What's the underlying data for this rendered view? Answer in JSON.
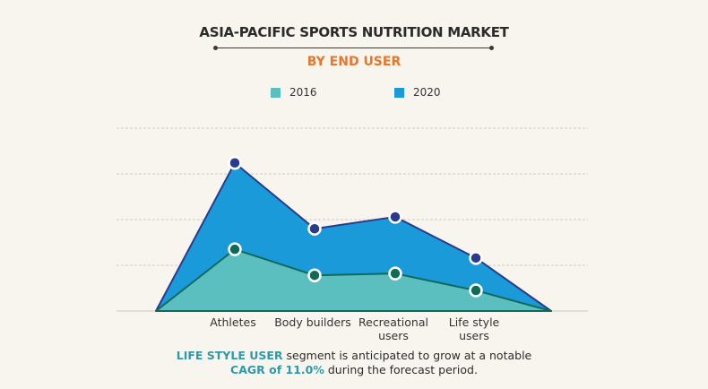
{
  "chart_data": {
    "type": "area",
    "title": "ASIA-PACIFIC SPORTS NUTRITION MARKET",
    "subtitle": "BY END USER",
    "categories": [
      "",
      "Athletes",
      "Body builders",
      "Recreational users",
      "Life style users",
      ""
    ],
    "category_lines": [
      [],
      [
        "Athletes"
      ],
      [
        "Body builders"
      ],
      [
        "Recreational",
        "users"
      ],
      [
        "Life style",
        "users"
      ],
      []
    ],
    "series": [
      {
        "name": "2020",
        "color": "#1a9ad9",
        "line": "#2a3a8f",
        "values": [
          0,
          3.24,
          1.8,
          2.06,
          1.16,
          0
        ]
      },
      {
        "name": "2016",
        "color": "#5bbfbf",
        "line": "#106a5a",
        "values": [
          0,
          1.35,
          0.78,
          0.82,
          0.45,
          0
        ]
      }
    ],
    "ylim": [
      0,
      4
    ],
    "y_ticks_labeled": false,
    "grid": true,
    "legend_position": "top-center",
    "xlabel": "",
    "ylabel": ""
  },
  "legend": [
    {
      "label": "2016",
      "color": "#5bbfbf"
    },
    {
      "label": "2020",
      "color": "#1a9ad9"
    }
  ],
  "footnote": {
    "hl1": "LIFE STYLE USER",
    "text1": " segment is anticipated to grow at a notable",
    "hl2": "CAGR of 11.0%",
    "text2": " during the forecast period."
  }
}
